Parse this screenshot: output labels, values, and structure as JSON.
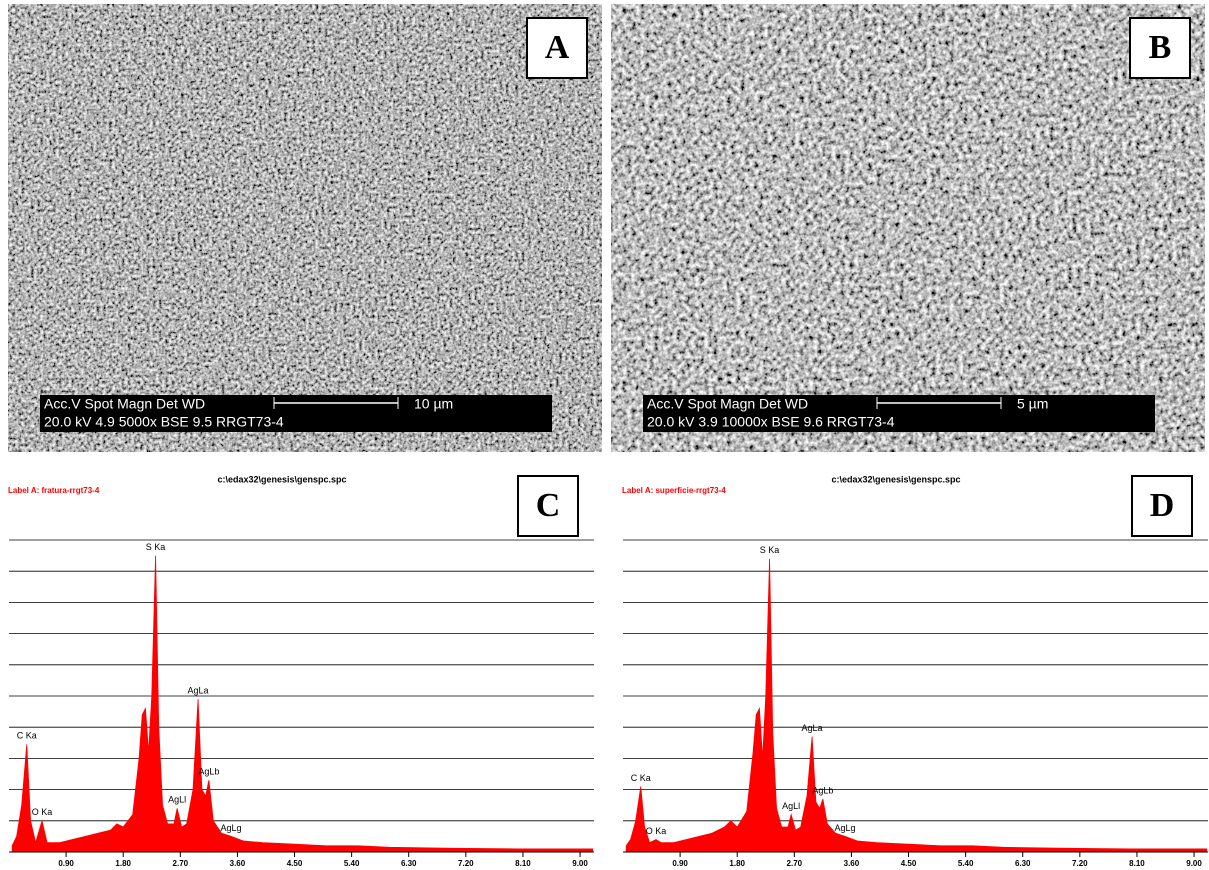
{
  "panels": [
    {
      "label": "A",
      "header": "Acc.V  Spot Magn    Det  WD",
      "values": "20.0 kV 4.9   5000x   BSE  9.5   RRGT73-4",
      "scale": "10 µm"
    },
    {
      "label": "B",
      "header": "Acc.V  Spot Magn    Det  WD",
      "values": "20.0 kV 3.9   10000x  BSE  9.6   RRGT73-4",
      "scale": "5 µm"
    }
  ],
  "chart_data": [
    {
      "type": "area",
      "label": "C",
      "title": "c:\\edax32\\genesis\\genspc.spc",
      "subtitle": "Label A: fratura-rrgt73-4",
      "color": "#ff0000",
      "xlim": [
        0,
        9.22
      ],
      "ylim": [
        0,
        10
      ],
      "ygrid": [
        1,
        2,
        3,
        4,
        5,
        6,
        7,
        8,
        9,
        10
      ],
      "xticks": [
        {
          "value": 0.9,
          "label": "0.90"
        },
        {
          "value": 1.8,
          "label": "1.80"
        },
        {
          "value": 2.7,
          "label": "2.70"
        },
        {
          "value": 3.6,
          "label": "3.60"
        },
        {
          "value": 4.5,
          "label": "4.50"
        },
        {
          "value": 5.4,
          "label": "5.40"
        },
        {
          "value": 6.3,
          "label": "6.30"
        },
        {
          "value": 7.2,
          "label": "7.20"
        },
        {
          "value": 8.1,
          "label": "8.10"
        },
        {
          "value": 9,
          "label": "9.00"
        }
      ],
      "x": [
        0.05,
        0.12,
        0.2,
        0.28,
        0.34,
        0.42,
        0.52,
        0.6,
        0.8,
        1.0,
        1.2,
        1.4,
        1.6,
        1.7,
        1.8,
        1.95,
        2.05,
        2.1,
        2.15,
        2.2,
        2.25,
        2.31,
        2.36,
        2.42,
        2.5,
        2.6,
        2.65,
        2.72,
        2.8,
        2.9,
        2.98,
        3.04,
        3.1,
        3.15,
        3.22,
        3.35,
        3.5,
        3.7,
        4.0,
        4.5,
        5.0,
        5.5,
        6.0,
        7.0,
        8.0,
        9.0,
        9.2
      ],
      "values": [
        0.2,
        0.5,
        1.5,
        3.45,
        1.0,
        0.3,
        1.0,
        0.3,
        0.3,
        0.4,
        0.5,
        0.6,
        0.7,
        0.9,
        0.8,
        1.2,
        3.0,
        4.4,
        4.6,
        3.2,
        5.0,
        9.5,
        4.0,
        1.5,
        0.9,
        0.9,
        1.4,
        0.8,
        0.9,
        2.0,
        4.9,
        2.0,
        1.8,
        2.3,
        1.0,
        0.6,
        0.5,
        0.35,
        0.3,
        0.25,
        0.2,
        0.2,
        0.15,
        0.12,
        0.1,
        0.1,
        0.1
      ],
      "annotations": [
        {
          "text": "C Ka",
          "x": 0.28,
          "y": 3.45
        },
        {
          "text": "O Ka",
          "x": 0.52,
          "y": 1.0
        },
        {
          "text": "S Ka",
          "x": 2.31,
          "y": 9.5
        },
        {
          "text": "AgLa",
          "x": 2.98,
          "y": 4.9
        },
        {
          "text": "AgLl",
          "x": 2.65,
          "y": 1.4
        },
        {
          "text": "AgLb",
          "x": 3.15,
          "y": 2.3
        },
        {
          "text": "AgLg",
          "x": 3.5,
          "y": 0.5
        }
      ]
    },
    {
      "type": "area",
      "label": "D",
      "title": "c:\\edax32\\genesis\\genspc.spc",
      "subtitle": "Label A: superficie-rrgt73-4",
      "color": "#ff0000",
      "xlim": [
        0,
        9.22
      ],
      "ylim": [
        0,
        10
      ],
      "ygrid": [
        1,
        2,
        3,
        4,
        5,
        6,
        7,
        8,
        9,
        10
      ],
      "xticks": [
        {
          "value": 0.9,
          "label": "0.90"
        },
        {
          "value": 1.8,
          "label": "1.80"
        },
        {
          "value": 2.7,
          "label": "2.70"
        },
        {
          "value": 3.6,
          "label": "3.60"
        },
        {
          "value": 4.5,
          "label": "4.50"
        },
        {
          "value": 5.4,
          "label": "5.40"
        },
        {
          "value": 6.3,
          "label": "6.30"
        },
        {
          "value": 7.2,
          "label": "7.20"
        },
        {
          "value": 8.1,
          "label": "8.10"
        },
        {
          "value": 9,
          "label": "9.00"
        }
      ],
      "x": [
        0.05,
        0.12,
        0.2,
        0.28,
        0.34,
        0.42,
        0.52,
        0.6,
        0.8,
        1.0,
        1.2,
        1.4,
        1.6,
        1.7,
        1.8,
        1.95,
        2.05,
        2.1,
        2.15,
        2.2,
        2.25,
        2.31,
        2.36,
        2.42,
        2.5,
        2.6,
        2.65,
        2.72,
        2.8,
        2.9,
        2.98,
        3.04,
        3.1,
        3.15,
        3.22,
        3.35,
        3.5,
        3.7,
        4.0,
        4.5,
        5.0,
        5.5,
        6.0,
        7.0,
        8.0,
        9.0,
        9.2
      ],
      "values": [
        0.2,
        0.4,
        1.0,
        2.1,
        0.8,
        0.3,
        0.4,
        0.3,
        0.3,
        0.4,
        0.5,
        0.6,
        0.8,
        1.0,
        0.8,
        1.3,
        3.2,
        4.4,
        4.6,
        3.0,
        5.0,
        9.4,
        3.8,
        1.4,
        0.8,
        0.8,
        1.2,
        0.7,
        0.8,
        1.8,
        3.7,
        1.6,
        1.4,
        1.7,
        0.9,
        0.6,
        0.5,
        0.35,
        0.3,
        0.25,
        0.2,
        0.2,
        0.15,
        0.12,
        0.1,
        0.1,
        0.1
      ],
      "annotations": [
        {
          "text": "C Ka",
          "x": 0.28,
          "y": 2.1
        },
        {
          "text": "O Ka",
          "x": 0.52,
          "y": 0.4
        },
        {
          "text": "S Ka",
          "x": 2.31,
          "y": 9.4
        },
        {
          "text": "AgLa",
          "x": 2.98,
          "y": 3.7
        },
        {
          "text": "AgLl",
          "x": 2.65,
          "y": 1.2
        },
        {
          "text": "AgLb",
          "x": 3.15,
          "y": 1.7
        },
        {
          "text": "AgLg",
          "x": 3.5,
          "y": 0.5
        }
      ]
    }
  ]
}
